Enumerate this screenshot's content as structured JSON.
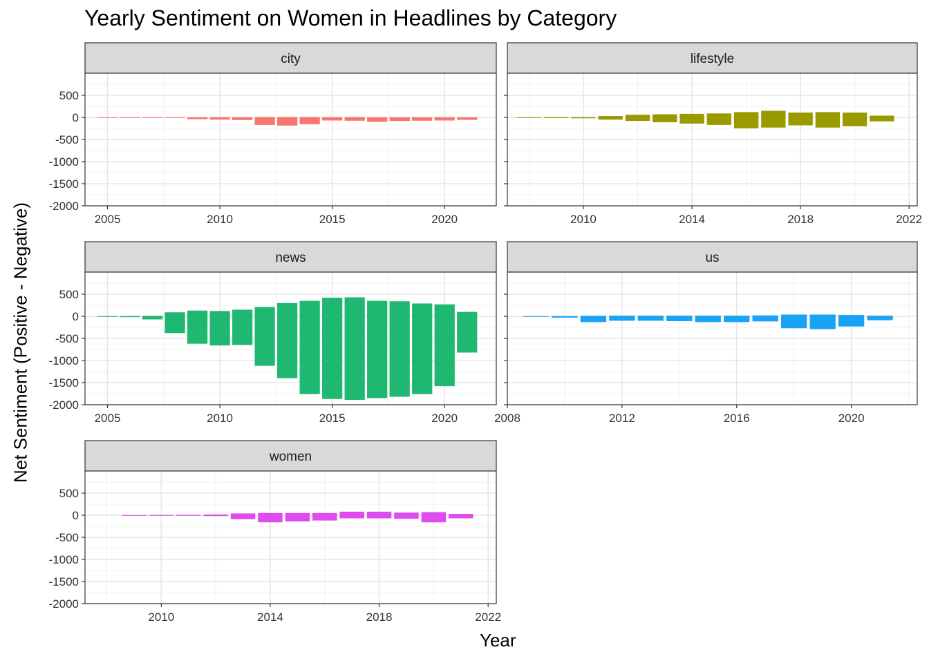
{
  "chart_data": {
    "type": "bar",
    "title": "Yearly Sentiment on Women in Headlines by Category",
    "xlabel": "Year",
    "ylabel": "Net Sentiment (Positive - Negative)",
    "ylim": [
      -2000,
      1000
    ],
    "yticks": [
      500,
      0,
      -500,
      -1000,
      -1500,
      -2000
    ],
    "grid": true,
    "facets": [
      {
        "name": "city",
        "color": "#F8766D",
        "xlim": [
          2004,
          2022.3
        ],
        "xticks": [
          2005,
          2010,
          2015,
          2020
        ],
        "positive": [
          {
            "year": 2005,
            "value": 2
          },
          {
            "year": 2006,
            "value": 3
          },
          {
            "year": 2007,
            "value": 4
          },
          {
            "year": 2008,
            "value": 5
          },
          {
            "year": 2009,
            "value": 3
          },
          {
            "year": 2010,
            "value": 5
          },
          {
            "year": 2011,
            "value": 6
          },
          {
            "year": 2012,
            "value": 8
          },
          {
            "year": 2013,
            "value": 8
          },
          {
            "year": 2014,
            "value": 8
          },
          {
            "year": 2015,
            "value": 5
          },
          {
            "year": 2016,
            "value": 8
          },
          {
            "year": 2017,
            "value": 5
          },
          {
            "year": 2018,
            "value": 5
          },
          {
            "year": 2019,
            "value": 5
          },
          {
            "year": 2020,
            "value": 5
          },
          {
            "year": 2021,
            "value": 3
          }
        ],
        "negative": [
          {
            "year": 2005,
            "value": -3
          },
          {
            "year": 2006,
            "value": -5
          },
          {
            "year": 2007,
            "value": -8
          },
          {
            "year": 2008,
            "value": -10
          },
          {
            "year": 2009,
            "value": -40
          },
          {
            "year": 2010,
            "value": -50
          },
          {
            "year": 2011,
            "value": -60
          },
          {
            "year": 2012,
            "value": -170
          },
          {
            "year": 2013,
            "value": -185
          },
          {
            "year": 2014,
            "value": -155
          },
          {
            "year": 2015,
            "value": -70
          },
          {
            "year": 2016,
            "value": -75
          },
          {
            "year": 2017,
            "value": -100
          },
          {
            "year": 2018,
            "value": -80
          },
          {
            "year": 2019,
            "value": -75
          },
          {
            "year": 2020,
            "value": -70
          },
          {
            "year": 2021,
            "value": -55
          }
        ]
      },
      {
        "name": "lifestyle",
        "color": "#999900",
        "xlim": [
          2007.2,
          2022.3
        ],
        "xticks": [
          2010,
          2014,
          2018,
          2022
        ],
        "positive": [
          {
            "year": 2008,
            "value": 5
          },
          {
            "year": 2009,
            "value": 6
          },
          {
            "year": 2010,
            "value": 8
          },
          {
            "year": 2011,
            "value": 30
          },
          {
            "year": 2012,
            "value": 60
          },
          {
            "year": 2013,
            "value": 70
          },
          {
            "year": 2014,
            "value": 80
          },
          {
            "year": 2015,
            "value": 90
          },
          {
            "year": 2016,
            "value": 120
          },
          {
            "year": 2017,
            "value": 150
          },
          {
            "year": 2018,
            "value": 110
          },
          {
            "year": 2019,
            "value": 120
          },
          {
            "year": 2020,
            "value": 110
          },
          {
            "year": 2021,
            "value": 40
          }
        ],
        "negative": [
          {
            "year": 2008,
            "value": -10
          },
          {
            "year": 2009,
            "value": -15
          },
          {
            "year": 2010,
            "value": -20
          },
          {
            "year": 2011,
            "value": -50
          },
          {
            "year": 2012,
            "value": -80
          },
          {
            "year": 2013,
            "value": -110
          },
          {
            "year": 2014,
            "value": -140
          },
          {
            "year": 2015,
            "value": -170
          },
          {
            "year": 2016,
            "value": -245
          },
          {
            "year": 2017,
            "value": -230
          },
          {
            "year": 2018,
            "value": -180
          },
          {
            "year": 2019,
            "value": -230
          },
          {
            "year": 2020,
            "value": -200
          },
          {
            "year": 2021,
            "value": -90
          }
        ]
      },
      {
        "name": "news",
        "color": "#1FB870",
        "xlim": [
          2004,
          2022.3
        ],
        "xticks": [
          2005,
          2010,
          2015,
          2020
        ],
        "positive": [
          {
            "year": 2005,
            "value": 3
          },
          {
            "year": 2006,
            "value": 5
          },
          {
            "year": 2007,
            "value": 10
          },
          {
            "year": 2008,
            "value": 90
          },
          {
            "year": 2009,
            "value": 130
          },
          {
            "year": 2010,
            "value": 120
          },
          {
            "year": 2011,
            "value": 150
          },
          {
            "year": 2012,
            "value": 210
          },
          {
            "year": 2013,
            "value": 300
          },
          {
            "year": 2014,
            "value": 350
          },
          {
            "year": 2015,
            "value": 420
          },
          {
            "year": 2016,
            "value": 430
          },
          {
            "year": 2017,
            "value": 350
          },
          {
            "year": 2018,
            "value": 340
          },
          {
            "year": 2019,
            "value": 290
          },
          {
            "year": 2020,
            "value": 270
          },
          {
            "year": 2021,
            "value": 100
          }
        ],
        "negative": [
          {
            "year": 2005,
            "value": -10
          },
          {
            "year": 2006,
            "value": -20
          },
          {
            "year": 2007,
            "value": -70
          },
          {
            "year": 2008,
            "value": -380
          },
          {
            "year": 2009,
            "value": -620
          },
          {
            "year": 2010,
            "value": -660
          },
          {
            "year": 2011,
            "value": -650
          },
          {
            "year": 2012,
            "value": -1120
          },
          {
            "year": 2013,
            "value": -1400
          },
          {
            "year": 2014,
            "value": -1760
          },
          {
            "year": 2015,
            "value": -1870
          },
          {
            "year": 2016,
            "value": -1890
          },
          {
            "year": 2017,
            "value": -1850
          },
          {
            "year": 2018,
            "value": -1820
          },
          {
            "year": 2019,
            "value": -1760
          },
          {
            "year": 2020,
            "value": -1580
          },
          {
            "year": 2021,
            "value": -820
          }
        ]
      },
      {
        "name": "us",
        "color": "#1AA3F5",
        "xlim": [
          2008,
          2022.3
        ],
        "xticks": [
          2008,
          2012,
          2016,
          2020
        ],
        "positive": [
          {
            "year": 2009,
            "value": 3
          },
          {
            "year": 2010,
            "value": 5
          },
          {
            "year": 2011,
            "value": 10
          },
          {
            "year": 2012,
            "value": 15
          },
          {
            "year": 2013,
            "value": 15
          },
          {
            "year": 2014,
            "value": 15
          },
          {
            "year": 2015,
            "value": 15
          },
          {
            "year": 2016,
            "value": 15
          },
          {
            "year": 2017,
            "value": 20
          },
          {
            "year": 2018,
            "value": 40
          },
          {
            "year": 2019,
            "value": 40
          },
          {
            "year": 2020,
            "value": 30
          },
          {
            "year": 2021,
            "value": 15
          }
        ],
        "negative": [
          {
            "year": 2009,
            "value": -10
          },
          {
            "year": 2010,
            "value": -30
          },
          {
            "year": 2011,
            "value": -130
          },
          {
            "year": 2012,
            "value": -100
          },
          {
            "year": 2013,
            "value": -100
          },
          {
            "year": 2014,
            "value": -110
          },
          {
            "year": 2015,
            "value": -130
          },
          {
            "year": 2016,
            "value": -130
          },
          {
            "year": 2017,
            "value": -115
          },
          {
            "year": 2018,
            "value": -270
          },
          {
            "year": 2019,
            "value": -290
          },
          {
            "year": 2020,
            "value": -230
          },
          {
            "year": 2021,
            "value": -90
          }
        ]
      },
      {
        "name": "women",
        "color": "#DE4BEF",
        "xlim": [
          2007.2,
          2022.3
        ],
        "xticks": [
          2010,
          2014,
          2018,
          2022
        ],
        "positive": [
          {
            "year": 2009,
            "value": 3
          },
          {
            "year": 2010,
            "value": 5
          },
          {
            "year": 2011,
            "value": 8
          },
          {
            "year": 2012,
            "value": 15
          },
          {
            "year": 2013,
            "value": 40
          },
          {
            "year": 2014,
            "value": 50
          },
          {
            "year": 2015,
            "value": 50
          },
          {
            "year": 2016,
            "value": 50
          },
          {
            "year": 2017,
            "value": 80
          },
          {
            "year": 2018,
            "value": 80
          },
          {
            "year": 2019,
            "value": 60
          },
          {
            "year": 2020,
            "value": 70
          },
          {
            "year": 2021,
            "value": 30
          }
        ],
        "negative": [
          {
            "year": 2009,
            "value": -5
          },
          {
            "year": 2010,
            "value": -8
          },
          {
            "year": 2011,
            "value": -10
          },
          {
            "year": 2012,
            "value": -20
          },
          {
            "year": 2013,
            "value": -90
          },
          {
            "year": 2014,
            "value": -160
          },
          {
            "year": 2015,
            "value": -140
          },
          {
            "year": 2016,
            "value": -120
          },
          {
            "year": 2017,
            "value": -70
          },
          {
            "year": 2018,
            "value": -70
          },
          {
            "year": 2019,
            "value": -80
          },
          {
            "year": 2020,
            "value": -160
          },
          {
            "year": 2021,
            "value": -70
          }
        ]
      }
    ]
  }
}
